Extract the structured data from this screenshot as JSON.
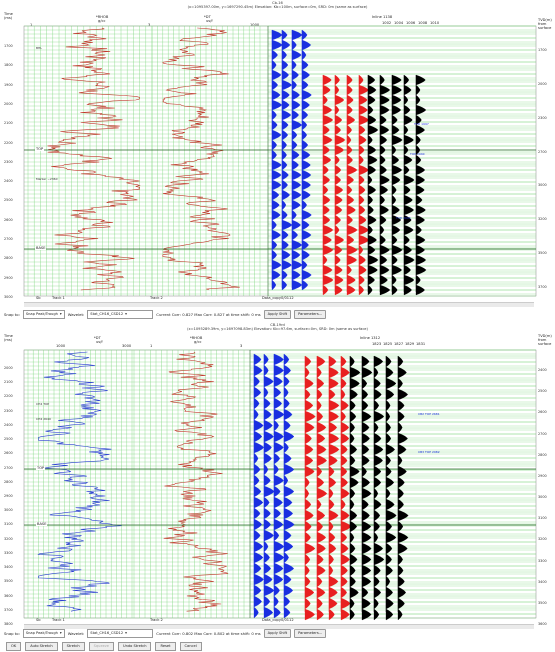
{
  "panel1": {
    "title_line1": "Cb-16",
    "title_line2": "(x=1095397.00m, y=1697290.45m) Elevation: Kb=100m, surface=0m, SRD: 0m (same as surface)",
    "time_axis": {
      "label": "Time",
      "unit": "(ms)",
      "ticks": [
        "1700",
        "1800",
        "1900",
        "2000",
        "2100",
        "2200",
        "2300",
        "2400",
        "2500",
        "2600",
        "2700",
        "2800",
        "2900",
        "3000"
      ]
    },
    "tvd_axis": {
      "label": "TVD(m)",
      "sub1": "from",
      "sub2": "surface",
      "ticks": [
        "1700",
        "2000",
        "2300",
        "2700",
        "3000",
        "3200",
        "3500",
        "3700"
      ]
    },
    "log1": {
      "name": "*RHOB",
      "unit": "g/cc",
      "min": "1",
      "max": "3"
    },
    "log2": {
      "name": "*DT",
      "unit": "us/f",
      "min": "",
      "max": "1000"
    },
    "inline": {
      "name": "Inline 1138",
      "traces": [
        "1002",
        "1004",
        "1006",
        "1008",
        "1010"
      ]
    },
    "markers": [
      "TOP",
      "BASE"
    ],
    "annots": [
      "BHL",
      "Marker ~2360",
      "TVD 1997",
      "TOP 2040",
      "TVD 2005"
    ],
    "tracks": {
      "tab": "Sb",
      "t1": "Track 1",
      "t2": "Track 2",
      "t3": "Data_copy0/0112"
    }
  },
  "controls1": {
    "snap_label": "Snap to:",
    "snap_value": "Snap Peak/Trough",
    "wavelet_label": "Wavelet:",
    "wavelet_value": "Stat_CH16_CSD12",
    "corr_text": "Current Corr: 0.827  Max Corr: 0.827 at time shift: 0 ms",
    "apply": "Apply Shift",
    "params": "Parameters..."
  },
  "panel2": {
    "title_line1": "CB-19rd",
    "title_line2": "(x=1095289.39m, y=1697098.83m) Elevation: Kb=97.6m, surface=0m, SRD: 0m (same as surface)",
    "time_axis": {
      "label": "Time",
      "unit": "(ms)",
      "ticks": [
        "2000",
        "2100",
        "2200",
        "2300",
        "2400",
        "2500",
        "2600",
        "2700",
        "2800",
        "2900",
        "3000",
        "3100",
        "3200",
        "3300",
        "3400",
        "3500",
        "3600",
        "3700",
        "3800"
      ]
    },
    "tvd_axis": {
      "label": "TVD(m)",
      "sub1": "from",
      "sub2": "surface",
      "ticks": [
        "2400",
        "2500",
        "2600",
        "2700",
        "2800",
        "2900",
        "3000",
        "3100",
        "3200",
        "3300",
        "3400",
        "3500",
        "3600"
      ]
    },
    "log1": {
      "name": "*DT",
      "unit": "us/f",
      "min": "1000",
      "max": "3000"
    },
    "log2": {
      "name": "*RHOB",
      "unit": "g/cc",
      "min": "1",
      "max": "3"
    },
    "inline": {
      "name": "Inline 1312",
      "traces": [
        "1823",
        "1825",
        "1827",
        "1829",
        "1831"
      ]
    },
    "markers": [
      "TOP",
      "BASE"
    ],
    "annots": [
      "CH4 TOP",
      "CH4 2640",
      "CB2 TOP 2681",
      "CB3 TOP 2982"
    ],
    "tracks": {
      "tab": "Sb",
      "t1": "Track 1",
      "t2": "Track 2",
      "t3": "Data_copy0/0112"
    }
  },
  "controls2": {
    "snap_label": "Snap to:",
    "snap_value": "Snap Peak/Trough",
    "wavelet_label": "Wavelet:",
    "wavelet_value": "Stat_CH16_CSD12",
    "corr_text": "Current Corr: 0.802  Max Corr: 0.802 at time shift: 0 ms",
    "apply": "Apply Shift",
    "params": "Parameters..."
  },
  "footer": {
    "ok": "OK",
    "auto": "Auto Stretch",
    "stretch": "Stretch",
    "squeeze": "Squeeze",
    "undo": "Undo Stretch",
    "reset": "Reset",
    "cancel": "Cancel"
  },
  "colors": {
    "grid": "#7bd67b",
    "log_red": "#c0392b",
    "log_blue": "#2a3fd0",
    "seis_blue": "#1a2fe0",
    "seis_red": "#e82020",
    "seis_black": "#000000"
  }
}
